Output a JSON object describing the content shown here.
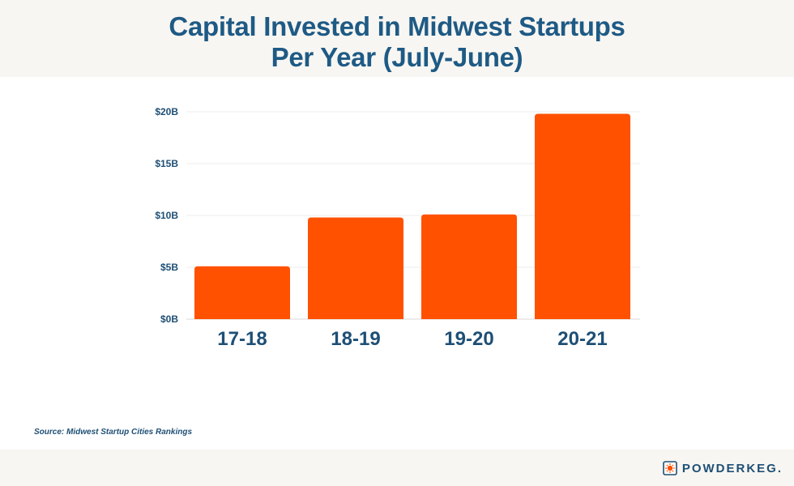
{
  "header": {
    "title_line1": "Capital Invested in Midwest Startups",
    "title_line2": "Per Year (July-June)"
  },
  "chart_data": {
    "type": "bar",
    "categories": [
      "17-18",
      "18-19",
      "19-20",
      "20-21"
    ],
    "values": [
      5.1,
      9.8,
      10.1,
      19.8
    ],
    "unit": "billion USD",
    "ylim": [
      0,
      20
    ],
    "yticks": [
      0,
      5,
      10,
      15,
      20
    ],
    "ytick_labels": [
      "$0B",
      "$5B",
      "$10B",
      "$15B",
      "$20B"
    ],
    "grid": true,
    "bar_color": "#ff5100",
    "text_color": "#1e4f75"
  },
  "footer": {
    "source": "Source:  Midwest Startup Cities Rankings",
    "brand": "POWDERKEG.",
    "brand_icon": "powderkeg-logo-icon"
  },
  "colors": {
    "title": "#1e5a85",
    "band": "#f8f6f2",
    "accent": "#ff5100"
  }
}
